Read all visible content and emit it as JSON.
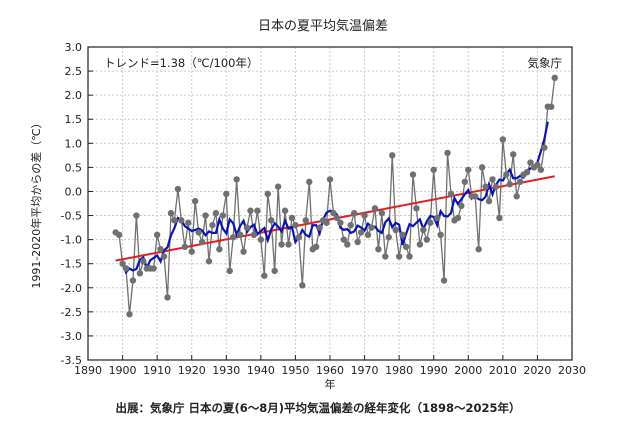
{
  "chart_data": {
    "type": "line",
    "title": "日本の夏平均気温偏差",
    "xlabel": "年",
    "ylabel": "1991-2020年平均からの差（℃）",
    "annotation": "トレンド=1.38（℃/100年）",
    "source_label": "気象庁",
    "caption": "出展：気象庁 日本の夏(6～8月)平均気温偏差の経年変化（1898～2025年）",
    "xlim": [
      1890,
      2030
    ],
    "ylim": [
      -3.5,
      3.0
    ],
    "xticks": [
      "1890",
      "1900",
      "1910",
      "1920",
      "1930",
      "1940",
      "1950",
      "1960",
      "1970",
      "1980",
      "1990",
      "2000",
      "2010",
      "2020",
      "2030"
    ],
    "yticks": [
      "3.0",
      "2.5",
      "2.0",
      "1.5",
      "1.0",
      "0.5",
      "0.0",
      "-0.5",
      "-1.0",
      "-1.5",
      "-2.0",
      "-2.5",
      "-3.0",
      "-3.5"
    ],
    "grid": true,
    "x_start": 1898,
    "series": [
      {
        "kind": "annual",
        "color": "#707070",
        "values": [
          -0.85,
          -0.9,
          -1.5,
          -1.6,
          -2.55,
          -1.85,
          -0.5,
          -1.7,
          -1.45,
          -1.6,
          -1.6,
          -1.6,
          -0.9,
          -1.2,
          -1.35,
          -2.2,
          -0.45,
          -0.6,
          0.05,
          -0.6,
          -1.15,
          -0.65,
          -1.25,
          -0.2,
          -0.85,
          -1.05,
          -0.5,
          -1.45,
          -0.7,
          -0.45,
          -1.2,
          -0.5,
          -0.05,
          -1.65,
          -0.95,
          0.25,
          -0.9,
          -1.25,
          -0.75,
          -0.4,
          -0.9,
          -0.4,
          -1.0,
          -1.75,
          -0.05,
          -0.6,
          -1.65,
          0.1,
          -1.1,
          -0.4,
          -1.1,
          -0.55,
          -0.7,
          -0.95,
          -1.95,
          -0.6,
          0.2,
          -1.2,
          -1.15,
          -0.75,
          -0.6,
          -0.65,
          0.25,
          -0.45,
          -0.55,
          -0.65,
          -1.0,
          -1.1,
          -0.7,
          -0.45,
          -1.05,
          -0.85,
          -0.5,
          -0.9,
          -0.75,
          -0.35,
          -1.2,
          -0.45,
          -1.35,
          -0.95,
          0.75,
          -0.8,
          -1.35,
          -0.9,
          -1.15,
          -1.35,
          0.35,
          -0.35,
          -1.1,
          -0.8,
          -1.0,
          -0.65,
          0.45,
          -0.55,
          -0.9,
          -1.85,
          0.8,
          -0.05,
          -0.6,
          -0.55,
          -0.3,
          0.2,
          0.45,
          -0.1,
          -0.1,
          -1.2,
          0.5,
          0.1,
          -0.2,
          0.25,
          0.1,
          -0.55,
          1.08,
          0.35,
          0.15,
          0.77,
          -0.1,
          0.2,
          0.35,
          0.4,
          0.6,
          0.5,
          0.55,
          0.45,
          0.91,
          1.76,
          1.76,
          2.36
        ]
      },
      {
        "kind": "5-year running mean",
        "color": "#0a14b4"
      },
      {
        "kind": "long-term trend",
        "color": "#e02020",
        "slope_per_100yr": 1.38
      }
    ]
  }
}
